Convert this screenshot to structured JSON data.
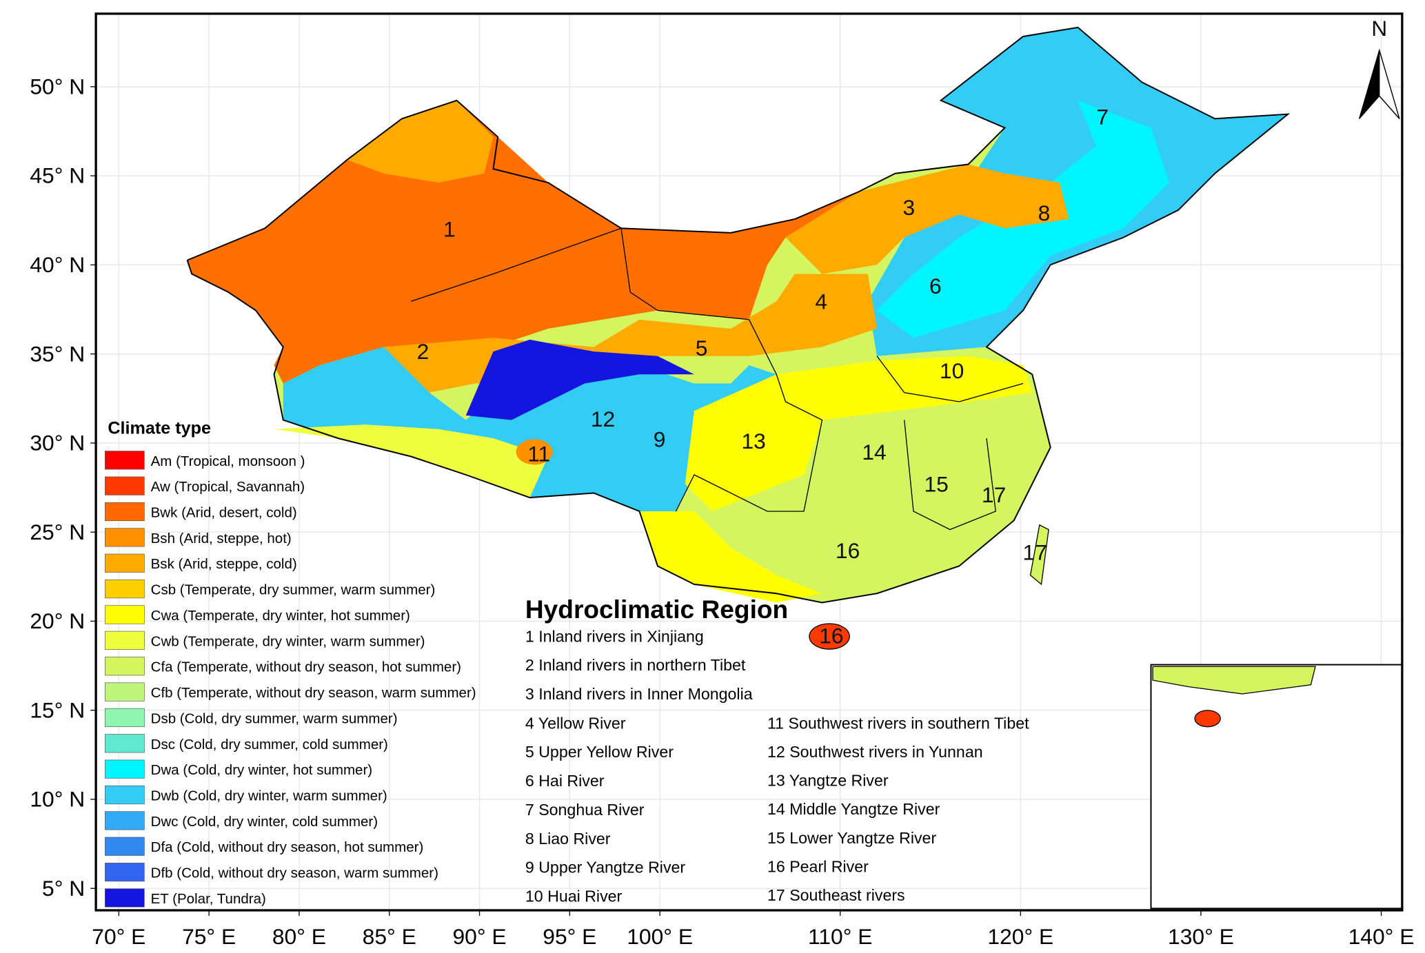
{
  "map": {
    "lat_range": [
      3.77,
      54.1
    ],
    "lon_range": [
      68.73,
      141.16
    ],
    "lat_ticks": [
      {
        "value": 50,
        "label": "50° N"
      },
      {
        "value": 45,
        "label": "45° N"
      },
      {
        "value": 40,
        "label": "40° N"
      },
      {
        "value": 35,
        "label": "35° N"
      },
      {
        "value": 30,
        "label": "30° N"
      },
      {
        "value": 25,
        "label": "25° N"
      },
      {
        "value": 20,
        "label": "20° N"
      },
      {
        "value": 15,
        "label": "15° N"
      },
      {
        "value": 10,
        "label": "10° N"
      },
      {
        "value": 5,
        "label": "5° N"
      }
    ],
    "lon_ticks": [
      {
        "value": 70,
        "label": "70° E"
      },
      {
        "value": 75,
        "label": "75° E"
      },
      {
        "value": 80,
        "label": "80° E"
      },
      {
        "value": 85,
        "label": "85° E"
      },
      {
        "value": 90,
        "label": "90° E"
      },
      {
        "value": 95,
        "label": "95° E"
      },
      {
        "value": 100,
        "label": "100° E"
      },
      {
        "value": 110,
        "label": "110° E"
      },
      {
        "value": 120,
        "label": "120° E"
      },
      {
        "value": 130,
        "label": "130° E"
      },
      {
        "value": 140,
        "label": "140° E"
      }
    ],
    "north_label": "N",
    "legend": {
      "title": "Climate type",
      "items": [
        {
          "label": "Am (Tropical, monsoon )",
          "color": "#ff0000"
        },
        {
          "label": "Aw (Tropical, Savannah)",
          "color": "#ff3a00"
        },
        {
          "label": "Bwk (Arid, desert, cold)",
          "color": "#ff6a00"
        },
        {
          "label": "Bsh (Arid, steppe, hot)",
          "color": "#ff9000"
        },
        {
          "label": "Bsk (Arid, steppe, cold)",
          "color": "#ffaa00"
        },
        {
          "label": "Csb (Temperate, dry summer, warm summer)",
          "color": "#ffd000"
        },
        {
          "label": "Cwa (Temperate, dry winter, hot summer)",
          "color": "#ffff00"
        },
        {
          "label": "Cwb (Temperate, dry winter, warm summer)",
          "color": "#eeff40"
        },
        {
          "label": "Cfa (Temperate, without dry season, hot summer)",
          "color": "#d4f560"
        },
        {
          "label": "Cfb (Temperate, without dry season, warm summer)",
          "color": "#bff57a"
        },
        {
          "label": "Dsb (Cold, dry summer, warm summer)",
          "color": "#90f5b0"
        },
        {
          "label": "Dsc (Cold, dry summer, cold summer)",
          "color": "#60e8d0"
        },
        {
          "label": "Dwa (Cold, dry winter, hot summer)",
          "color": "#00f5ff"
        },
        {
          "label": "Dwb  (Cold, dry winter, warm summer)",
          "color": "#33ccf5"
        },
        {
          "label": "Dwc  (Cold, dry winter, cold summer)",
          "color": "#33aaf5"
        },
        {
          "label": "Dfa (Cold, without dry season, hot summer)",
          "color": "#3388f0"
        },
        {
          "label": "Dfb (Cold, without dry season, warm summer)",
          "color": "#3366f0"
        },
        {
          "label": "ET (Polar, Tundra)",
          "color": "#1515e0"
        }
      ]
    },
    "regions": {
      "title": "Hydroclimatic Region",
      "items": [
        "1 Inland rivers in Xinjiang",
        "2 Inland rivers in northern Tibet",
        "3 Inland rivers in Inner Mongolia",
        "4 Yellow River",
        "5 Upper Yellow River",
        "6 Hai River",
        "7 Songhua River",
        "8 Liao River",
        "9 Upper Yangtze River",
        "10 Huai River",
        "11 Southwest rivers in southern Tibet",
        "12 Southwest rivers in Yunnan",
        "13 Yangtze River",
        "14 Middle Yangtze River",
        "15 Lower Yangtze River",
        "16 Pearl River",
        "17 Southeast rivers"
      ]
    },
    "region_numbers": [
      "1",
      "2",
      "3",
      "4",
      "5",
      "6",
      "7",
      "8",
      "9",
      "10",
      "11",
      "12",
      "13",
      "14",
      "15",
      "16",
      "16",
      "17",
      "17"
    ]
  }
}
